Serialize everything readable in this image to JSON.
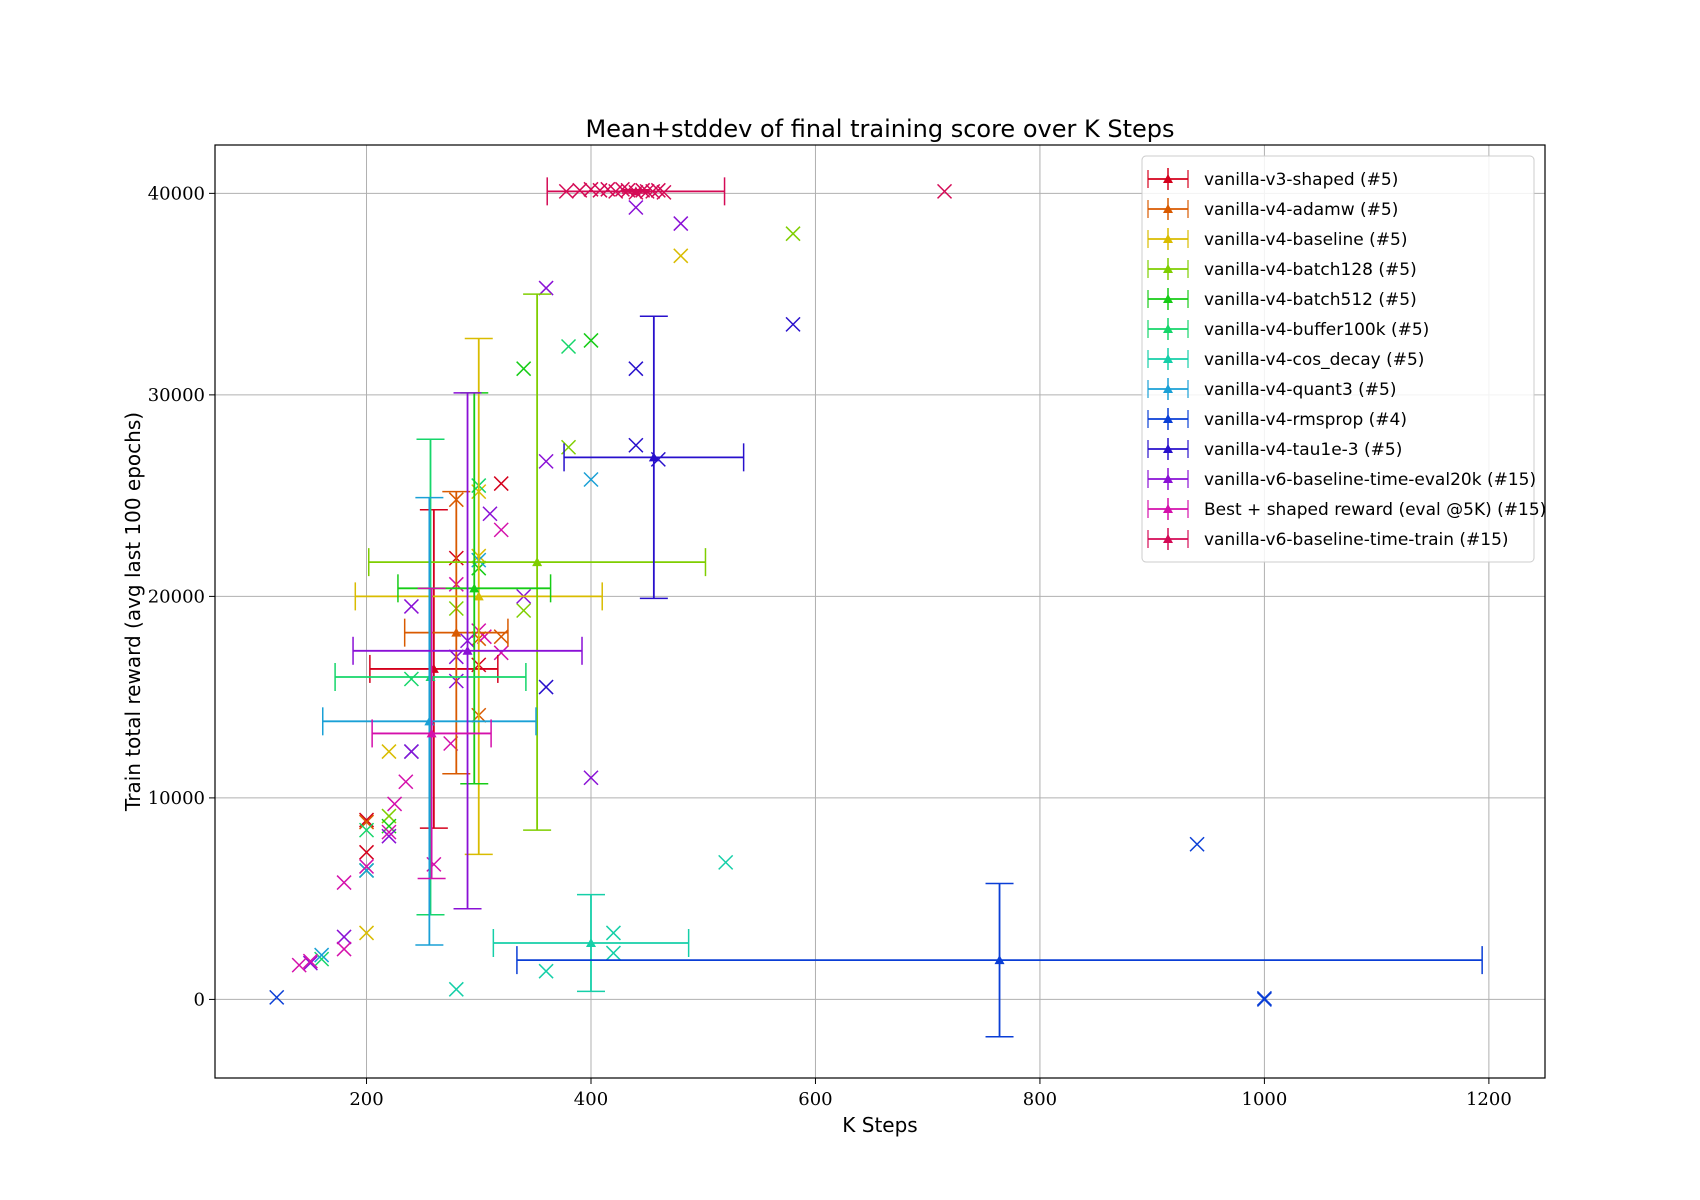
{
  "chart_data": {
    "type": "scatter",
    "title": "Mean+stddev of final training score over K Steps",
    "xlabel": "K Steps",
    "ylabel": "Train total reward (avg last 100 epochs)",
    "xlim": [
      65,
      1250
    ],
    "ylim": [
      -3900,
      42400
    ],
    "xticks": [
      200,
      400,
      600,
      800,
      1000,
      1200
    ],
    "yticks": [
      0,
      10000,
      20000,
      30000,
      40000
    ],
    "grid": true,
    "legend_position": "top-right",
    "series": [
      {
        "name": "vanilla-v3-shaped (#5)",
        "color": "#d4001c",
        "mean": {
          "x": 260,
          "y": 16400,
          "xerr": 57,
          "yerr": 7900
        },
        "runs": [
          [
            200,
            7300
          ],
          [
            280,
            21900
          ],
          [
            320,
            25600
          ],
          [
            200,
            8900
          ],
          [
            300,
            16600
          ]
        ]
      },
      {
        "name": "vanilla-v4-adamw (#5)",
        "color": "#d95a00",
        "mean": {
          "x": 280,
          "y": 18200,
          "xerr": 46,
          "yerr": 7000
        },
        "runs": [
          [
            280,
            24800
          ],
          [
            300,
            17900
          ],
          [
            300,
            14100
          ],
          [
            320,
            18000
          ],
          [
            200,
            8800
          ]
        ]
      },
      {
        "name": "vanilla-v4-baseline (#5)",
        "color": "#d9bc00",
        "mean": {
          "x": 300,
          "y": 20000,
          "xerr": 110,
          "yerr": 12800
        },
        "runs": [
          [
            220,
            12300
          ],
          [
            300,
            25200
          ],
          [
            480,
            36900
          ],
          [
            200,
            3300
          ],
          [
            300,
            22000
          ]
        ]
      },
      {
        "name": "vanilla-v4-batch128 (#5)",
        "color": "#7fce00",
        "mean": {
          "x": 352,
          "y": 21700,
          "xerr": 150,
          "yerr": 13300
        },
        "runs": [
          [
            580,
            38000
          ],
          [
            340,
            19300
          ],
          [
            380,
            27400
          ],
          [
            280,
            19400
          ],
          [
            220,
            9100
          ]
        ]
      },
      {
        "name": "vanilla-v4-batch512 (#5)",
        "color": "#16cc16",
        "mean": {
          "x": 296,
          "y": 20400,
          "xerr": 68,
          "yerr": 9700
        },
        "runs": [
          [
            200,
            6400
          ],
          [
            220,
            8600
          ],
          [
            340,
            31300
          ],
          [
            400,
            32700
          ],
          [
            300,
            21400
          ]
        ]
      },
      {
        "name": "vanilla-v4-buffer100k (#5)",
        "color": "#15d66a",
        "mean": {
          "x": 257,
          "y": 16000,
          "xerr": 85,
          "yerr": 11800
        },
        "runs": [
          [
            160,
            2000
          ],
          [
            200,
            8400
          ],
          [
            240,
            15900
          ],
          [
            380,
            32400
          ],
          [
            300,
            25500
          ]
        ]
      },
      {
        "name": "vanilla-v4-cos_decay (#5)",
        "color": "#15cfa8",
        "mean": {
          "x": 400,
          "y": 2800,
          "xerr": 87,
          "yerr": 2400
        },
        "runs": [
          [
            280,
            500
          ],
          [
            360,
            1400
          ],
          [
            420,
            2300
          ],
          [
            420,
            3300
          ],
          [
            520,
            6800
          ]
        ]
      },
      {
        "name": "vanilla-v4-quant3 (#5)",
        "color": "#1aa0d6",
        "mean": {
          "x": 256,
          "y": 13800,
          "xerr": 95,
          "yerr": 11100
        },
        "runs": [
          [
            160,
            2200
          ],
          [
            200,
            6400
          ],
          [
            240,
            12300
          ],
          [
            300,
            21800
          ],
          [
            400,
            25800
          ]
        ]
      },
      {
        "name": "vanilla-v4-rmsprop (#4)",
        "color": "#0a3ed6",
        "mean": {
          "x": 764,
          "y": 1950,
          "xerr": 430,
          "yerr": 3800
        },
        "runs": [
          [
            120,
            100
          ],
          [
            940,
            7700
          ],
          [
            1000,
            0
          ],
          [
            1000,
            50
          ]
        ]
      },
      {
        "name": "vanilla-v4-tau1e-3 (#5)",
        "color": "#2810cc",
        "mean": {
          "x": 456,
          "y": 26900,
          "xerr": 80,
          "yerr": 7000
        },
        "runs": [
          [
            440,
            27500
          ],
          [
            460,
            26800
          ],
          [
            440,
            31300
          ],
          [
            580,
            33500
          ],
          [
            360,
            15500
          ]
        ]
      },
      {
        "name": "vanilla-v6-baseline-time-eval20k (#15)",
        "color": "#8a10d6",
        "mean": {
          "x": 290,
          "y": 17300,
          "xerr": 102,
          "yerr": 12800
        },
        "runs": [
          [
            240,
            19500
          ],
          [
            280,
            17000
          ],
          [
            340,
            20000
          ],
          [
            400,
            11000
          ],
          [
            440,
            39300
          ],
          [
            480,
            38500
          ],
          [
            360,
            35300
          ],
          [
            360,
            26700
          ],
          [
            280,
            15800
          ],
          [
            240,
            12300
          ],
          [
            220,
            8100
          ],
          [
            180,
            3100
          ],
          [
            310,
            24100
          ],
          [
            290,
            17800
          ],
          [
            150,
            1800
          ]
        ]
      },
      {
        "name": "Best + shaped reward (eval @5K) (#15)",
        "color": "#d410ab",
        "mean": {
          "x": 258,
          "y": 13200,
          "xerr": 53,
          "yerr": 7200
        },
        "runs": [
          [
            140,
            1700
          ],
          [
            150,
            1900
          ],
          [
            180,
            2500
          ],
          [
            180,
            5800
          ],
          [
            200,
            6600
          ],
          [
            225,
            9700
          ],
          [
            235,
            10800
          ],
          [
            260,
            6700
          ],
          [
            275,
            12700
          ],
          [
            280,
            20600
          ],
          [
            300,
            18300
          ],
          [
            305,
            18000
          ],
          [
            320,
            17200
          ],
          [
            320,
            23300
          ],
          [
            220,
            8300
          ]
        ]
      },
      {
        "name": "vanilla-v6-baseline-time-train (#15)",
        "color": "#d40a55",
        "mean": {
          "x": 440,
          "y": 40100,
          "xerr": 79,
          "yerr": 80
        },
        "runs": [
          [
            378,
            40100
          ],
          [
            390,
            40150
          ],
          [
            400,
            40200
          ],
          [
            408,
            40150
          ],
          [
            415,
            40200
          ],
          [
            422,
            40100
          ],
          [
            428,
            40200
          ],
          [
            433,
            40150
          ],
          [
            440,
            40050
          ],
          [
            446,
            40150
          ],
          [
            450,
            40100
          ],
          [
            455,
            40100
          ],
          [
            460,
            40150
          ],
          [
            465,
            40050
          ],
          [
            715,
            40100
          ]
        ]
      }
    ]
  }
}
